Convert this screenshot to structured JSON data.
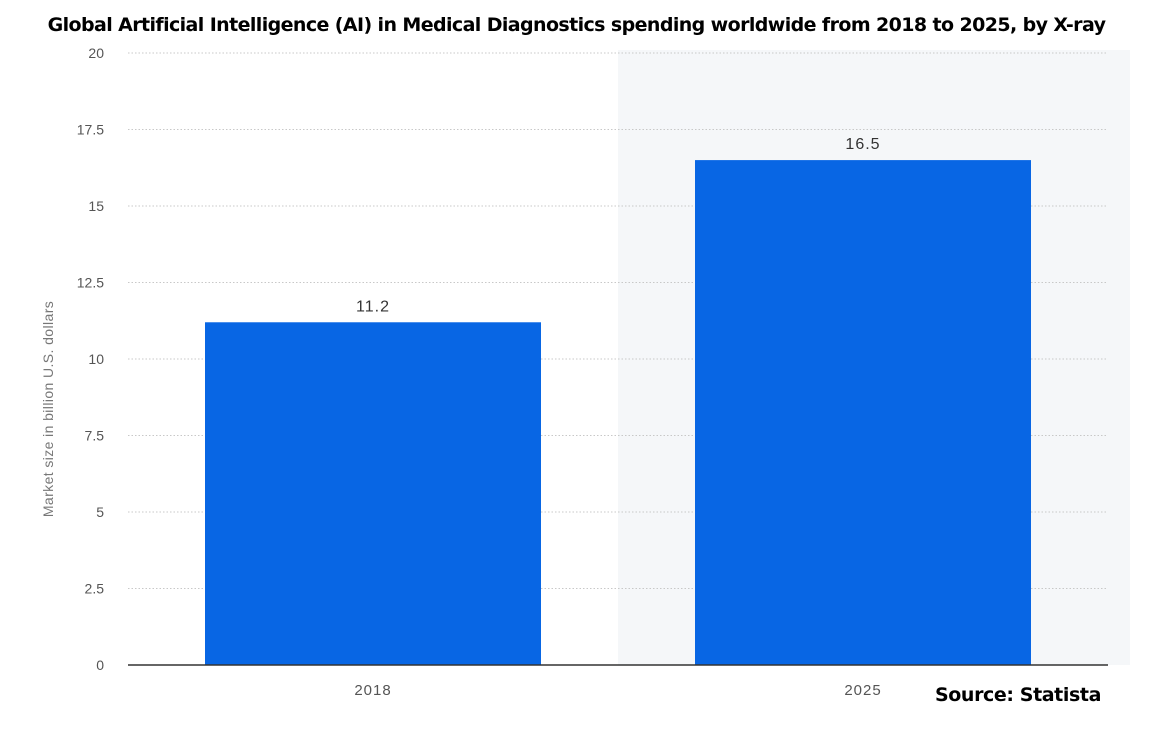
{
  "chart_data": {
    "type": "bar",
    "title": "Global Artificial Intelligence (AI) in Medical Diagnostics spending worldwide from 2018 to 2025, by X-ray",
    "categories": [
      "2018",
      "2025"
    ],
    "values": [
      11.2,
      16.5
    ],
    "value_labels": [
      "11.2",
      "16.5"
    ],
    "ylabel": "Market size in billion U.S. dollars",
    "xlabel": "",
    "ylim": [
      0,
      20
    ],
    "yticks": [
      "0",
      "2.5",
      "5",
      "7.5",
      "10",
      "12.5",
      "15",
      "17.5",
      "20"
    ],
    "grid": true,
    "bar_color": "#0866e4",
    "highlight_background": "#f5f7f9"
  },
  "source": "Source: Statista"
}
